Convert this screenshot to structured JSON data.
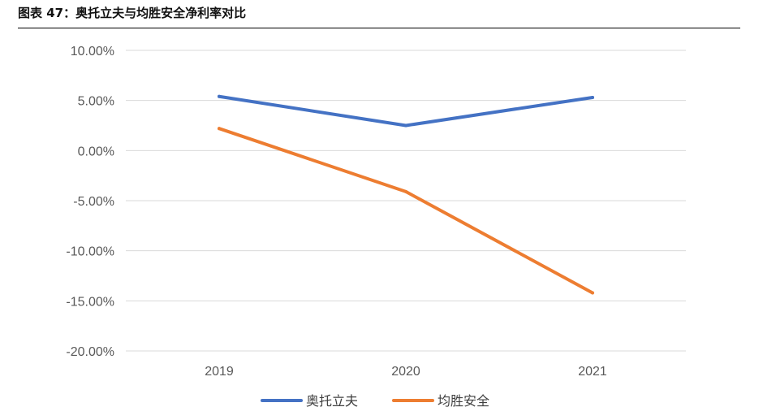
{
  "title": "图表 47：奥托立夫与均胜安全净利率对比",
  "chart_data": {
    "type": "line",
    "categories": [
      "2019",
      "2020",
      "2021"
    ],
    "series": [
      {
        "name": "奥托立夫",
        "color": "#4472C4",
        "values": [
          5.4,
          2.5,
          5.3
        ]
      },
      {
        "name": "均胜安全",
        "color": "#ED7D31",
        "values": [
          2.2,
          -4.1,
          -14.2
        ]
      }
    ],
    "ylim": [
      -20,
      10
    ],
    "yticks": [
      10,
      5,
      0,
      -5,
      -10,
      -15,
      -20
    ],
    "ytick_labels": [
      "10.00%",
      "5.00%",
      "0.00%",
      "-5.00%",
      "-10.00%",
      "-15.00%",
      "-20.00%"
    ],
    "grid": true,
    "legend_position": "bottom"
  }
}
